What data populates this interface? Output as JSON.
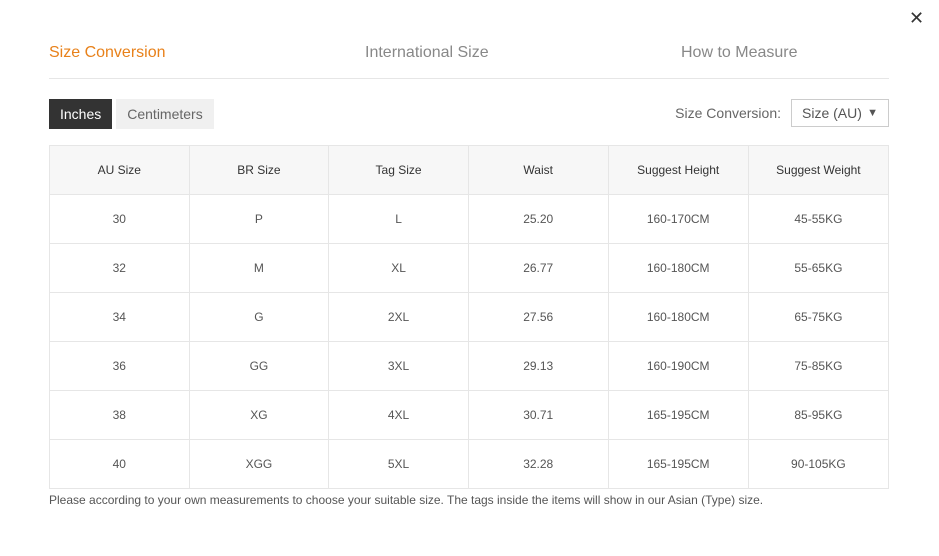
{
  "close_icon": "close-icon",
  "tabs": [
    {
      "label": "Size Conversion",
      "active": true
    },
    {
      "label": "International Size"
    },
    {
      "label": "How to Measure"
    }
  ],
  "units": [
    {
      "label": "Inches",
      "active": true
    },
    {
      "label": "Centimeters"
    }
  ],
  "conversion": {
    "label": "Size Conversion:",
    "value": "Size (AU)"
  },
  "accent": "#e8811a",
  "table": {
    "headers": [
      "AU Size",
      "BR Size",
      "Tag Size",
      "Waist",
      "Suggest Height",
      "Suggest Weight"
    ],
    "rows": [
      [
        "30",
        "P",
        "L",
        "25.20",
        "160-170CM",
        "45-55KG"
      ],
      [
        "32",
        "M",
        "XL",
        "26.77",
        "160-180CM",
        "55-65KG"
      ],
      [
        "34",
        "G",
        "2XL",
        "27.56",
        "160-180CM",
        "65-75KG"
      ],
      [
        "36",
        "GG",
        "3XL",
        "29.13",
        "160-190CM",
        "75-85KG"
      ],
      [
        "38",
        "XG",
        "4XL",
        "30.71",
        "165-195CM",
        "85-95KG"
      ],
      [
        "40",
        "XGG",
        "5XL",
        "32.28",
        "165-195CM",
        "90-105KG"
      ]
    ]
  },
  "note": "Please according to your own measurements to choose your suitable size. The tags inside the items will show in our Asian (Type) size."
}
